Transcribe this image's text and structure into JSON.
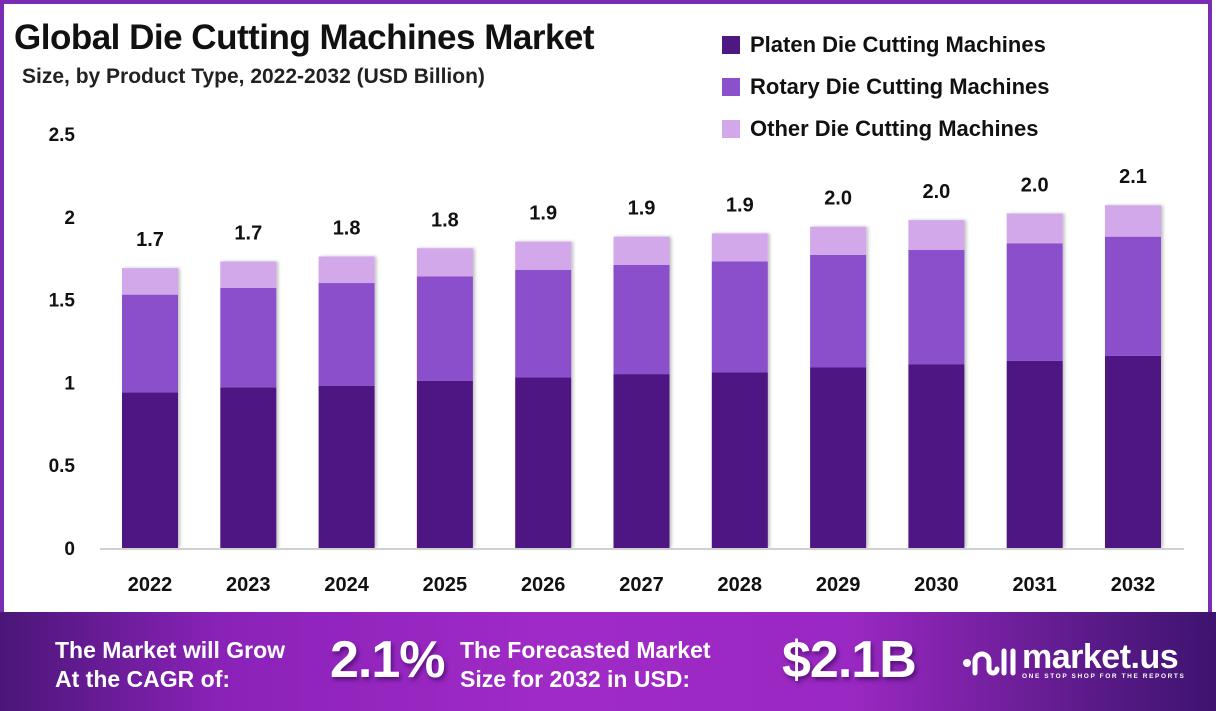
{
  "header": {
    "title": "Global Die Cutting Machines Market",
    "subtitle": "Size, by Product Type, 2022-2032 (USD Billion)"
  },
  "colors": {
    "platen": "#4e1882",
    "rotary": "#8b50cc",
    "other": "#d3a8ea",
    "frame": "#7b2cb5"
  },
  "chart_data": {
    "type": "bar",
    "stacked": true,
    "title": "Global Die Cutting Machines Market",
    "subtitle": "Size, by Product Type, 2022-2032 (USD Billion)",
    "xlabel": "",
    "ylabel": "",
    "categories": [
      "2022",
      "2023",
      "2024",
      "2025",
      "2026",
      "2027",
      "2028",
      "2029",
      "2030",
      "2031",
      "2032"
    ],
    "series": [
      {
        "name": "Platen Die Cutting Machines",
        "color": "#4e1882",
        "values": [
          0.94,
          0.97,
          0.98,
          1.01,
          1.03,
          1.05,
          1.06,
          1.09,
          1.11,
          1.13,
          1.16
        ]
      },
      {
        "name": "Rotary Die Cutting Machines",
        "color": "#8b50cc",
        "values": [
          0.59,
          0.6,
          0.62,
          0.63,
          0.65,
          0.66,
          0.67,
          0.68,
          0.69,
          0.71,
          0.72
        ]
      },
      {
        "name": "Other Die Cutting Machines",
        "color": "#d3a8ea",
        "values": [
          0.16,
          0.16,
          0.16,
          0.17,
          0.17,
          0.17,
          0.17,
          0.17,
          0.18,
          0.18,
          0.19
        ]
      }
    ],
    "totals_labels": [
      "1.7",
      "1.7",
      "1.8",
      "1.8",
      "1.9",
      "1.9",
      "1.9",
      "2.0",
      "2.0",
      "2.0",
      "2.1"
    ],
    "yticks": [
      "0",
      "0.5",
      "1",
      "1.5",
      "2",
      "2.5"
    ],
    "ytick_values": [
      0,
      0.5,
      1,
      1.5,
      2,
      2.5
    ],
    "ylim": [
      0,
      2.5
    ],
    "grid": false,
    "legend_position": "top-right"
  },
  "banner": {
    "cagr_text_line1": "The Market will Grow",
    "cagr_text_line2": "At the CAGR of:",
    "cagr_value": "2.1%",
    "forecast_text_line1": "The Forecasted Market",
    "forecast_text_line2": "Size for 2032 in USD:",
    "forecast_value": "$2.1B",
    "logo_name": "market.us",
    "logo_tagline": "ONE STOP SHOP FOR THE REPORTS"
  }
}
